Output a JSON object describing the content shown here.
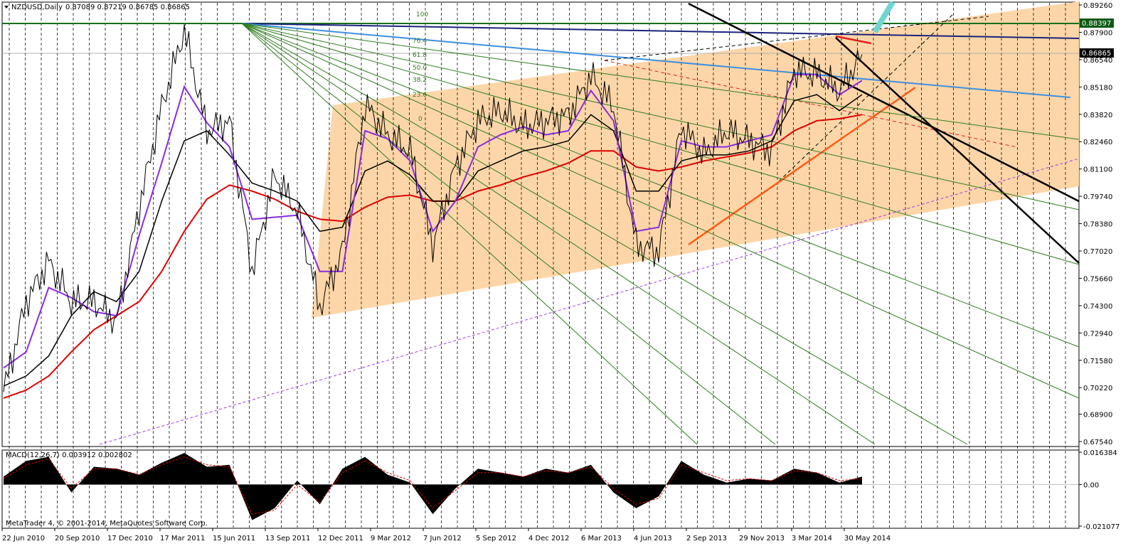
{
  "header": {
    "symbol": "NZDUSD,Daily",
    "ohlc": "0.87089 0.87219 0.86785 0.86865",
    "menu_icon": "triangle-down-icon"
  },
  "macd_header": {
    "label": "MACD(12,26,7) 0.003912 0.002802"
  },
  "copyright": "MetaTrader 4, © 2001-2014, MetaQuotes Software Corp.",
  "colors": {
    "background": "#ffffff",
    "channel_fill": "#fcd6a8",
    "price": "#000000",
    "ma_fast": "#8a2be2",
    "ma_mid": "#000000",
    "ma_slow": "#e00000",
    "fan": "#2e7d1e",
    "level_green": "#1a6e1a",
    "level_navy": "#1a237e",
    "trend_blue": "#3d8fe0",
    "trend_orange": "#ff5a14",
    "dashed_purple": "#a040e0",
    "macd_hist": "#000000",
    "macd_signal": "#e00000",
    "current_price_bg": "#000000",
    "level_price_bg": "#0a5a14"
  },
  "chart_data": {
    "type": "line",
    "symbol": "NZDUSD",
    "timeframe": "Daily",
    "ylim": [
      0.6754,
      0.8926
    ],
    "grid": "vertical dashed",
    "y_ticks": [
      "0.89260",
      "0.87900",
      "0.86540",
      "0.85180",
      "0.83820",
      "0.82460",
      "0.81100",
      "0.79740",
      "0.78380",
      "0.77020",
      "0.75660",
      "0.74300",
      "0.72940",
      "0.71580",
      "0.70220",
      "0.68900",
      "0.67540"
    ],
    "x_ticks": [
      "22 Jun 2010",
      "20 Sep 2010",
      "17 Dec 2010",
      "17 Mar 2011",
      "15 Jun 2011",
      "13 Sep 2011",
      "12 Dec 2011",
      "9 Mar 2012",
      "7 Jun 2012",
      "5 Sep 2012",
      "4 Dec 2012",
      "6 Mar 2013",
      "4 Jun 2013",
      "2 Sep 2013",
      "29 Nov 2013",
      "3 Mar 2014",
      "30 May 2014"
    ],
    "current_price": "0.86865",
    "level_price": "0.88397",
    "fib_levels": [
      "100",
      "76.4",
      "61.8",
      "50.0",
      "38.2",
      "23.6",
      "0"
    ],
    "series": [
      {
        "name": "NZDUSD",
        "values": [
          0.7,
          0.745,
          0.765,
          0.745,
          0.745,
          0.735,
          0.792,
          0.842,
          0.88,
          0.83,
          0.835,
          0.76,
          0.808,
          0.79,
          0.742,
          0.77,
          0.843,
          0.828,
          0.82,
          0.773,
          0.812,
          0.835,
          0.84,
          0.832,
          0.835,
          0.838,
          0.857,
          0.842,
          0.773,
          0.77,
          0.832,
          0.818,
          0.83,
          0.825,
          0.82,
          0.86,
          0.858,
          0.85,
          0.868
        ]
      },
      {
        "name": "",
        "values": [
          0.712,
          0.72,
          0.752,
          0.747,
          0.74,
          0.738,
          0.778,
          0.814,
          0.852,
          0.834,
          0.822,
          0.786,
          0.787,
          0.788,
          0.76,
          0.76,
          0.83,
          0.826,
          0.815,
          0.78,
          0.795,
          0.822,
          0.828,
          0.832,
          0.828,
          0.83,
          0.85,
          0.835,
          0.78,
          0.782,
          0.825,
          0.822,
          0.822,
          0.825,
          0.828,
          0.858,
          0.858,
          0.848,
          0.855
        ]
      },
      {
        "name": "",
        "values": [
          0.703,
          0.708,
          0.718,
          0.738,
          0.75,
          0.745,
          0.76,
          0.795,
          0.825,
          0.83,
          0.818,
          0.804,
          0.8,
          0.795,
          0.78,
          0.782,
          0.81,
          0.815,
          0.808,
          0.795,
          0.795,
          0.81,
          0.815,
          0.82,
          0.822,
          0.825,
          0.838,
          0.83,
          0.8,
          0.8,
          0.815,
          0.818,
          0.818,
          0.82,
          0.825,
          0.845,
          0.848,
          0.84,
          0.848
        ]
      },
      {
        "name": "",
        "values": [
          0.697,
          0.701,
          0.708,
          0.72,
          0.731,
          0.738,
          0.745,
          0.76,
          0.78,
          0.796,
          0.803,
          0.8,
          0.796,
          0.79,
          0.786,
          0.785,
          0.792,
          0.797,
          0.798,
          0.795,
          0.795,
          0.8,
          0.803,
          0.807,
          0.81,
          0.814,
          0.82,
          0.82,
          0.812,
          0.81,
          0.812,
          0.815,
          0.817,
          0.819,
          0.822,
          0.83,
          0.835,
          0.836,
          0.838
        ]
      }
    ],
    "macd": {
      "ylim": [
        -0.021077,
        0.016384
      ],
      "y_ticks": [
        "0.016384",
        "0.00",
        "-0.021077"
      ],
      "hist": [
        0.004,
        0.012,
        0.014,
        -0.004,
        0.009,
        0.008,
        0.005,
        0.011,
        0.016,
        0.009,
        0.01,
        -0.018,
        -0.012,
        0.002,
        -0.01,
        0.008,
        0.014,
        0.005,
        0.001,
        -0.015,
        -0.002,
        0.008,
        0.006,
        0.004,
        0.008,
        0.006,
        0.01,
        -0.004,
        -0.012,
        -0.006,
        0.012,
        0.005,
        0.001,
        0.003,
        0.002,
        0.008,
        0.006,
        0.001,
        0.004
      ],
      "signal": [
        0.003,
        0.01,
        0.013,
        -0.002,
        0.008,
        0.008,
        0.005,
        0.01,
        0.014,
        0.01,
        0.009,
        -0.015,
        -0.013,
        0.0,
        -0.009,
        0.006,
        0.012,
        0.006,
        0.002,
        -0.012,
        -0.003,
        0.006,
        0.006,
        0.004,
        0.007,
        0.006,
        0.009,
        -0.002,
        -0.01,
        -0.007,
        0.01,
        0.006,
        0.002,
        0.003,
        0.002,
        0.007,
        0.006,
        0.002,
        0.003
      ]
    }
  }
}
